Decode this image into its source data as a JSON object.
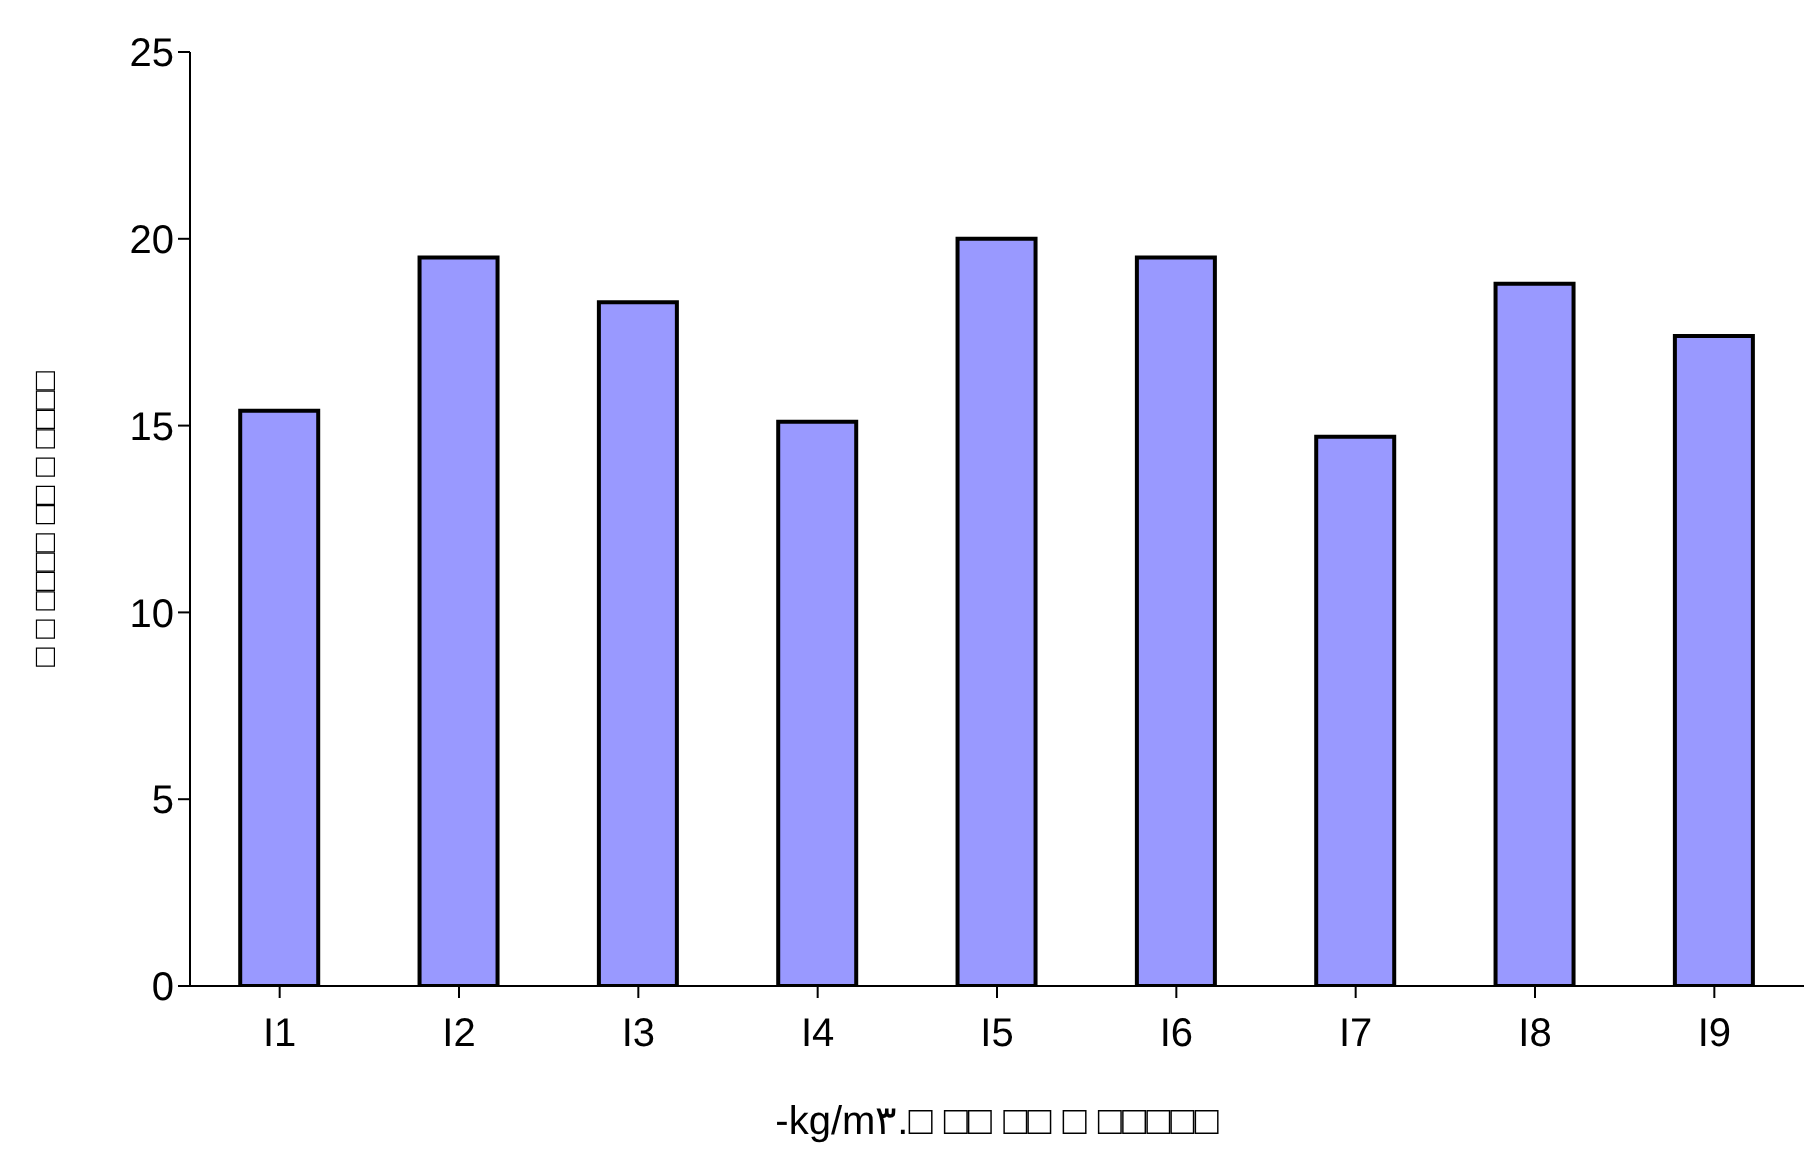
{
  "chart_data": {
    "type": "bar",
    "categories": [
      "I1",
      "I2",
      "I3",
      "I4",
      "I5",
      "I6",
      "I7",
      "I8",
      "I9"
    ],
    "values": [
      15.4,
      19.5,
      18.3,
      15.1,
      20,
      19.5,
      14.7,
      18.8,
      17.4
    ],
    "color": "#9999ff",
    "ylim": [
      0,
      25
    ],
    "yticks": [
      0,
      5,
      10,
      15,
      20,
      25
    ],
    "grid": false,
    "xlabel": "-kg/m۳.□ □□ □□ □ □□□□□",
    "ylabel": "□ □ □□□□ □□ □ □□□□"
  }
}
